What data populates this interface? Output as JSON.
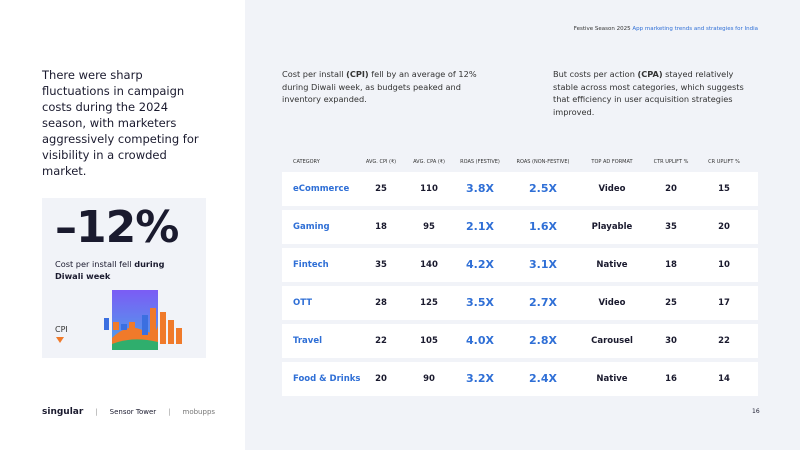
{
  "header": {
    "prefix": "Festive Season 2025",
    "suffix": "App marketing trends and strategies for India"
  },
  "intro": "There were sharp fluctuations in campaign costs during the 2024 season, with marketers aggressively competing for visibility in a crowded market.",
  "stat": {
    "value": "–12%",
    "caption": "Cost per install fell ",
    "caption_bold": "during Diwali week",
    "label": "CPI"
  },
  "notes": [
    [
      "Cost per install ",
      "(CPI)",
      " fell by an average of 12% during Diwali week, as budgets peaked and inventory expanded."
    ],
    [
      "But costs per action ",
      "(CPA)",
      " stayed relatively stable across most categories, which suggests that efficiency in user acquisition strategies improved."
    ]
  ],
  "table": {
    "columns": [
      "CATEGORY",
      "AVG. CPI (₹)",
      "AVG. CPA (₹)",
      "ROAS (FESTIVE)",
      "ROAS (NON-FESTIVE)",
      "TOP AD FORMAT",
      "CTR UPLIFT %",
      "CR UPLIFT %"
    ],
    "rows": [
      [
        "eCommerce",
        "25",
        "110",
        "3.8X",
        "2.5X",
        "Video",
        "20",
        "15"
      ],
      [
        "Gaming",
        "18",
        "95",
        "2.1X",
        "1.6X",
        "Playable",
        "35",
        "20"
      ],
      [
        "Fintech",
        "35",
        "140",
        "4.2X",
        "3.1X",
        "Native",
        "18",
        "10"
      ],
      [
        "OTT",
        "28",
        "125",
        "3.5X",
        "2.7X",
        "Video",
        "25",
        "17"
      ],
      [
        "Travel",
        "22",
        "105",
        "4.0X",
        "2.8X",
        "Carousel",
        "30",
        "22"
      ],
      [
        "Food & Drinks",
        "20",
        "90",
        "3.2X",
        "2.4X",
        "Native",
        "16",
        "14"
      ]
    ]
  },
  "footer": {
    "logos": [
      "singular",
      "Sensor Tower",
      "mobupps"
    ],
    "page": "16"
  }
}
